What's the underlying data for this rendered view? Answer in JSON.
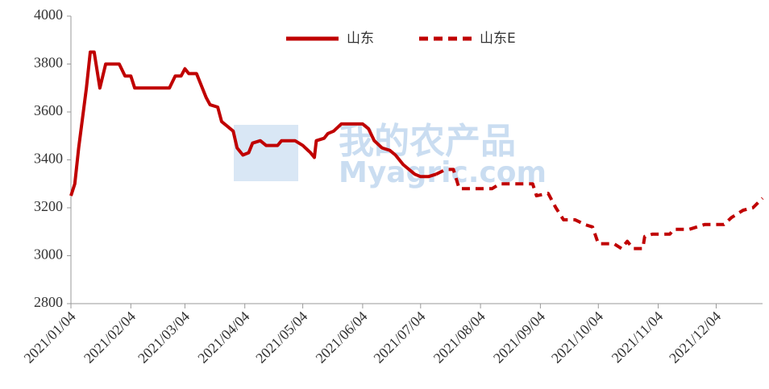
{
  "chart_data": {
    "type": "line",
    "watermark": [
      "我的农产品",
      "Myagric.com"
    ],
    "x": [
      "2021/01/04",
      "2021/01/06",
      "2021/01/08",
      "2021/01/12",
      "2021/01/14",
      "2021/01/16",
      "2021/01/19",
      "2021/01/22",
      "2021/01/26",
      "2021/01/29",
      "2021/02/01",
      "2021/02/04",
      "2021/02/06",
      "2021/02/10",
      "2021/02/20",
      "2021/02/24",
      "2021/02/27",
      "2021/03/02",
      "2021/03/04",
      "2021/03/06",
      "2021/03/10",
      "2021/03/15",
      "2021/03/17",
      "2021/03/21",
      "2021/03/23",
      "2021/03/26",
      "2021/03/29",
      "2021/03/31",
      "2021/04/03",
      "2021/04/06",
      "2021/04/08",
      "2021/04/12",
      "2021/04/15",
      "2021/04/21",
      "2021/04/23",
      "2021/04/30",
      "2021/05/04",
      "2021/05/08",
      "2021/05/10",
      "2021/05/11",
      "2021/05/15",
      "2021/05/17",
      "2021/05/20",
      "2021/05/24",
      "2021/05/31",
      "2021/06/04",
      "2021/06/07",
      "2021/06/10",
      "2021/06/14",
      "2021/06/18",
      "2021/06/21",
      "2021/06/25",
      "2021/06/28",
      "2021/07/01",
      "2021/07/04",
      "2021/07/08",
      "2021/07/12",
      "2021/07/17",
      "2021/07/21",
      "2021/07/24",
      "2021/07/28",
      "2021/08/10",
      "2021/08/14",
      "2021/08/20",
      "2021/08/31",
      "2021/09/02",
      "2021/09/08",
      "2021/09/12",
      "2021/09/16",
      "2021/09/22",
      "2021/09/27",
      "2021/10/01",
      "2021/10/04",
      "2021/10/12",
      "2021/10/16",
      "2021/10/19",
      "2021/10/22",
      "2021/10/27",
      "2021/10/28",
      "2021/11/01",
      "2021/11/06",
      "2021/11/10",
      "2021/11/12",
      "2021/11/20",
      "2021/11/28",
      "2021/12/04",
      "2021/12/08",
      "2021/12/12",
      "2021/12/18",
      "2021/12/23",
      "2021/12/28"
    ],
    "series": [
      {
        "name": "山东",
        "color": "#c00000",
        "dash": false,
        "values": [
          3250,
          3300,
          3450,
          3700,
          3850,
          3850,
          3700,
          3800,
          3800,
          3800,
          3750,
          3750,
          3700,
          3700,
          3700,
          3700,
          3750,
          3750,
          3780,
          3760,
          3760,
          3660,
          3630,
          3620,
          3560,
          3540,
          3520,
          3450,
          3420,
          3430,
          3470,
          3480,
          3460,
          3460,
          3480,
          3480,
          3460,
          3430,
          3410,
          3480,
          3490,
          3510,
          3520,
          3550,
          3550,
          3550,
          3530,
          3480,
          3450,
          3440,
          3420,
          3380,
          3360,
          3340,
          3330,
          3330,
          3340,
          null,
          null,
          null,
          null,
          null,
          null,
          null,
          null,
          null,
          null,
          null,
          null,
          null,
          null,
          null,
          null,
          null,
          null,
          null,
          null,
          null,
          null,
          null,
          null,
          null,
          null,
          null,
          null,
          null,
          null,
          null,
          null,
          null,
          null
        ]
      },
      {
        "name": "山东E",
        "color": "#c00000",
        "dash": true,
        "values": [
          null,
          null,
          null,
          null,
          null,
          null,
          null,
          null,
          null,
          null,
          null,
          null,
          null,
          null,
          null,
          null,
          null,
          null,
          null,
          null,
          null,
          null,
          null,
          null,
          null,
          null,
          null,
          null,
          null,
          null,
          null,
          null,
          null,
          null,
          null,
          null,
          null,
          null,
          null,
          null,
          null,
          null,
          null,
          null,
          null,
          null,
          null,
          null,
          null,
          null,
          null,
          null,
          null,
          null,
          null,
          null,
          3340,
          3360,
          3360,
          3280,
          3280,
          3280,
          3300,
          3300,
          3300,
          3250,
          3260,
          3200,
          3150,
          3150,
          3130,
          3120,
          3050,
          3050,
          3030,
          3060,
          3030,
          3030,
          3080,
          3090,
          3090,
          3090,
          3110,
          3110,
          3130,
          3130,
          3130,
          3160,
          3190,
          3200,
          3240
        ]
      }
    ],
    "xlim": [
      "2021/01/04",
      "2021/12/28"
    ],
    "xticks": [
      "2021/01/04",
      "2021/02/04",
      "2021/03/04",
      "2021/04/04",
      "2021/05/04",
      "2021/06/04",
      "2021/07/04",
      "2021/08/04",
      "2021/09/04",
      "2021/10/04",
      "2021/11/04",
      "2021/12/04"
    ],
    "ylim": [
      2800,
      4000
    ],
    "yticks": [
      2800,
      3000,
      3200,
      3400,
      3600,
      3800,
      4000
    ],
    "grid": false
  }
}
